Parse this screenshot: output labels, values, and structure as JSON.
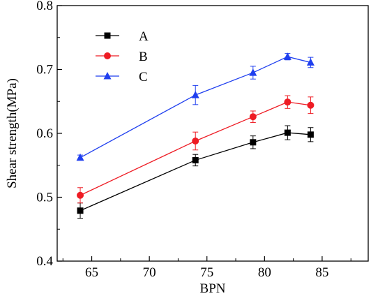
{
  "chart_data": {
    "type": "line",
    "title": "",
    "xlabel": "BPN",
    "ylabel": "Shear strength(MPa)",
    "xlim": [
      62,
      89
    ],
    "ylim": [
      0.4,
      0.8
    ],
    "xticks": [
      65,
      70,
      75,
      80,
      85
    ],
    "yticks": [
      0.4,
      0.5,
      0.6,
      0.7,
      0.8
    ],
    "xtick_labels": [
      "65",
      "70",
      "75",
      "80",
      "85"
    ],
    "ytick_labels": [
      "0.4",
      "0.5",
      "0.6",
      "0.7",
      "0.8"
    ],
    "grid": false,
    "legend_position": "top-left",
    "x": [
      64,
      74,
      79,
      82,
      84
    ],
    "series": [
      {
        "name": "A",
        "color": "#000000",
        "marker": "square",
        "values": [
          0.479,
          0.558,
          0.586,
          0.601,
          0.598
        ],
        "errors": [
          0.012,
          0.009,
          0.01,
          0.011,
          0.011
        ]
      },
      {
        "name": "B",
        "color": "#ee1c24",
        "marker": "circle",
        "values": [
          0.503,
          0.588,
          0.626,
          0.649,
          0.644
        ],
        "errors": [
          0.012,
          0.014,
          0.009,
          0.01,
          0.013
        ]
      },
      {
        "name": "C",
        "color": "#1f3fef",
        "marker": "triangle",
        "values": [
          0.562,
          0.66,
          0.695,
          0.72,
          0.711
        ],
        "errors": [
          0.004,
          0.015,
          0.01,
          0.005,
          0.008
        ]
      }
    ]
  }
}
